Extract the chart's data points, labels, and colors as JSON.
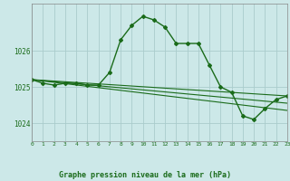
{
  "bg_color": "#cce8e8",
  "grid_color": "#aacccc",
  "line_color": "#1a6b1a",
  "title": "Graphe pression niveau de la mer (hPa)",
  "xlim": [
    0,
    23
  ],
  "ylim": [
    1023.5,
    1027.3
  ],
  "yticks": [
    1024,
    1025,
    1026
  ],
  "xticks": [
    0,
    1,
    2,
    3,
    4,
    5,
    6,
    7,
    8,
    9,
    10,
    11,
    12,
    13,
    14,
    15,
    16,
    17,
    18,
    19,
    20,
    21,
    22,
    23
  ],
  "series_main": {
    "x": [
      0,
      1,
      2,
      3,
      4,
      5,
      6,
      7,
      8,
      9,
      10,
      11,
      12,
      13,
      14,
      15,
      16,
      17,
      18,
      19,
      20,
      21,
      22,
      23
    ],
    "y": [
      1025.2,
      1025.1,
      1025.05,
      1025.1,
      1025.1,
      1025.05,
      1025.05,
      1025.4,
      1026.3,
      1026.7,
      1026.95,
      1026.85,
      1026.65,
      1026.2,
      1026.2,
      1026.2,
      1025.6,
      1025.0,
      1024.85,
      1024.2,
      1024.1,
      1024.4,
      1024.65,
      1024.75
    ]
  },
  "fan_lines": [
    {
      "x": [
        0,
        23
      ],
      "y": [
        1025.2,
        1024.75
      ]
    },
    {
      "x": [
        0,
        23
      ],
      "y": [
        1025.2,
        1024.55
      ]
    },
    {
      "x": [
        0,
        23
      ],
      "y": [
        1025.2,
        1024.35
      ]
    }
  ]
}
